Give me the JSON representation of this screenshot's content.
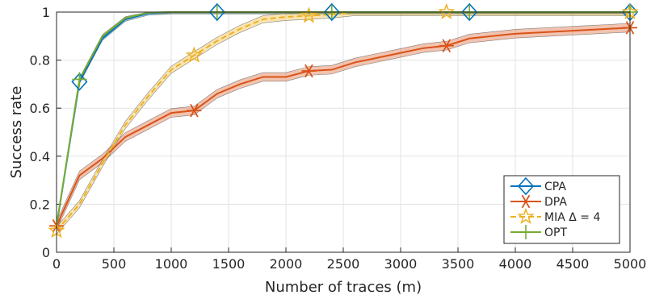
{
  "chart_data": {
    "type": "line",
    "title": "",
    "xlabel": "Number of traces (m)",
    "ylabel": "Success rate",
    "xlim": [
      0,
      5000
    ],
    "ylim": [
      0,
      1
    ],
    "xticks": [
      "0",
      "500",
      "1000",
      "1500",
      "2000",
      "2500",
      "3000",
      "3500",
      "4000",
      "4500",
      "5000"
    ],
    "yticks": [
      "0",
      "0.2",
      "0.4",
      "0.6",
      "0.8",
      "1"
    ],
    "grid": true,
    "legend_position": "bottom-right",
    "series": [
      {
        "name": "CPA",
        "color": "#0072bd",
        "marker": "diamond",
        "line": "solid",
        "x": [
          0,
          200,
          400,
          600,
          800,
          1000,
          1200,
          1400,
          1600,
          1800,
          2000,
          2200,
          2400,
          2600,
          2800,
          3000,
          3200,
          3400,
          3600,
          3800,
          4000,
          4200,
          4400,
          4600,
          4800,
          5000
        ],
        "y": [
          0.11,
          0.71,
          0.89,
          0.97,
          0.995,
          1,
          1,
          1,
          1,
          1,
          1,
          1,
          1,
          1,
          1,
          1,
          1,
          1,
          1,
          1,
          1,
          1,
          1,
          1,
          1,
          1
        ],
        "marker_x": [
          200,
          1400,
          2400,
          3600,
          5000
        ],
        "band": 0.008
      },
      {
        "name": "DPA",
        "color": "#d95319",
        "marker": "asterisk",
        "line": "solid",
        "x": [
          0,
          200,
          400,
          600,
          800,
          1000,
          1200,
          1400,
          1600,
          1800,
          2000,
          2200,
          2400,
          2600,
          2800,
          3000,
          3200,
          3400,
          3600,
          3800,
          4000,
          4200,
          4400,
          4600,
          4800,
          5000
        ],
        "y": [
          0.11,
          0.32,
          0.39,
          0.48,
          0.53,
          0.58,
          0.59,
          0.66,
          0.7,
          0.73,
          0.73,
          0.755,
          0.76,
          0.79,
          0.81,
          0.83,
          0.85,
          0.86,
          0.89,
          0.9,
          0.91,
          0.915,
          0.92,
          0.925,
          0.93,
          0.935
        ],
        "marker_x": [
          0,
          1200,
          2200,
          3400,
          5000
        ],
        "band": 0.018
      },
      {
        "name": "MIA Δ = 4",
        "color": "#edb120",
        "marker": "star",
        "line": "dashed",
        "x": [
          0,
          200,
          400,
          600,
          800,
          1000,
          1200,
          1400,
          1600,
          1800,
          2000,
          2200,
          2400,
          2600,
          2800,
          3000,
          3200,
          3400,
          3600,
          3800,
          4000,
          4200,
          4400,
          4600,
          4800,
          5000
        ],
        "y": [
          0.09,
          0.2,
          0.37,
          0.53,
          0.65,
          0.76,
          0.82,
          0.88,
          0.93,
          0.97,
          0.98,
          0.985,
          0.99,
          1,
          1,
          1,
          1,
          1,
          1,
          1,
          1,
          1,
          1,
          1,
          1,
          1
        ],
        "marker_x": [
          0,
          1200,
          2200,
          3400,
          5000
        ],
        "band": 0.015
      },
      {
        "name": "OPT",
        "color": "#77ac30",
        "marker": "plus",
        "line": "solid",
        "x": [
          0,
          200,
          400,
          600,
          800,
          1000,
          1200,
          1400,
          1600,
          1800,
          2000,
          2200,
          2400,
          2600,
          2800,
          3000,
          3200,
          3400,
          3600,
          3800,
          4000,
          4200,
          4400,
          4600,
          4800,
          5000
        ],
        "y": [
          0.11,
          0.72,
          0.9,
          0.975,
          0.998,
          1,
          1,
          1,
          1,
          1,
          1,
          1,
          1,
          1,
          1,
          1,
          1,
          1,
          1,
          1,
          1,
          1,
          1,
          1,
          1,
          1
        ],
        "marker_x": [
          200,
          1400,
          2400,
          3600,
          5000
        ],
        "band": 0.006
      }
    ]
  }
}
